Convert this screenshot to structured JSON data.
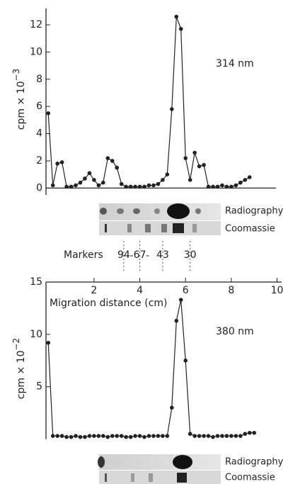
{
  "chart_data": [
    {
      "type": "line",
      "annotation": "314 nm",
      "y_label": "cpm × 10",
      "y_label_superscript": "−3",
      "ylim": [
        -0.5,
        13.2
      ],
      "yticks": [
        0,
        2,
        4,
        6,
        8,
        10,
        12
      ],
      "xlim": [
        -0.1,
        10.2
      ],
      "xticks": [
        2,
        4,
        6,
        8,
        10
      ],
      "x_label": "Migration distance (cm)",
      "gel_labels": [
        "Radiography",
        "Coomassie"
      ],
      "markers_label": "Markers",
      "markers": [
        {
          "label": "94",
          "x": 3.3
        },
        {
          "label": "67",
          "x": 4.0
        },
        {
          "label": "43",
          "x": 5.0
        },
        {
          "label": "30",
          "x": 6.2
        }
      ],
      "series": [
        {
          "color": "#222222",
          "x": [
            0,
            0.2,
            0.4,
            0.6,
            0.8,
            1.0,
            1.2,
            1.4,
            1.6,
            1.8,
            2.0,
            2.2,
            2.4,
            2.6,
            2.8,
            3.0,
            3.2,
            3.4,
            3.6,
            3.8,
            4.0,
            4.2,
            4.4,
            4.6,
            4.8,
            5.0,
            5.2,
            5.4,
            5.6,
            5.8,
            6.0,
            6.2,
            6.4,
            6.6,
            6.8,
            7.0,
            7.2,
            7.4,
            7.6,
            7.8,
            8.0,
            8.2,
            8.4,
            8.6,
            8.8
          ],
          "values": [
            5.5,
            0.2,
            1.8,
            1.9,
            0.1,
            0.1,
            0.2,
            0.4,
            0.7,
            1.1,
            0.6,
            0.2,
            0.4,
            2.2,
            2.0,
            1.5,
            0.3,
            0.1,
            0.1,
            0.1,
            0.1,
            0.1,
            0.2,
            0.2,
            0.3,
            0.6,
            1.0,
            5.8,
            12.6,
            11.7,
            2.2,
            0.6,
            2.6,
            1.6,
            1.7,
            0.1,
            0.1,
            0.1,
            0.2,
            0.1,
            0.1,
            0.2,
            0.4,
            0.6,
            0.8
          ]
        }
      ]
    },
    {
      "type": "line",
      "annotation": "380 nm",
      "y_label": "cpm × 10",
      "y_label_superscript": "−2",
      "ylim": [
        -0.5,
        15
      ],
      "yticks": [
        5,
        10,
        15
      ],
      "xlim": [
        -0.1,
        10.2
      ],
      "gel_labels": [
        "Radiography",
        "Coomassie"
      ],
      "series": [
        {
          "color": "#222222",
          "x": [
            0,
            0.2,
            0.4,
            0.6,
            0.8,
            1.0,
            1.2,
            1.4,
            1.6,
            1.8,
            2.0,
            2.2,
            2.4,
            2.6,
            2.8,
            3.0,
            3.2,
            3.4,
            3.6,
            3.8,
            4.0,
            4.2,
            4.4,
            4.6,
            4.8,
            5.0,
            5.2,
            5.4,
            5.6,
            5.8,
            6.0,
            6.2,
            6.4,
            6.6,
            6.8,
            7.0,
            7.2,
            7.4,
            7.6,
            7.8,
            8.0,
            8.2,
            8.4,
            8.6,
            8.8,
            9.0
          ],
          "values": [
            9.2,
            0.3,
            0.3,
            0.3,
            0.2,
            0.2,
            0.3,
            0.2,
            0.2,
            0.3,
            0.3,
            0.3,
            0.3,
            0.2,
            0.3,
            0.3,
            0.3,
            0.2,
            0.2,
            0.3,
            0.3,
            0.2,
            0.3,
            0.3,
            0.3,
            0.3,
            0.3,
            3.0,
            11.3,
            13.3,
            7.5,
            0.5,
            0.3,
            0.3,
            0.3,
            0.3,
            0.2,
            0.3,
            0.3,
            0.3,
            0.3,
            0.3,
            0.3,
            0.5,
            0.6,
            0.6
          ]
        }
      ]
    }
  ]
}
